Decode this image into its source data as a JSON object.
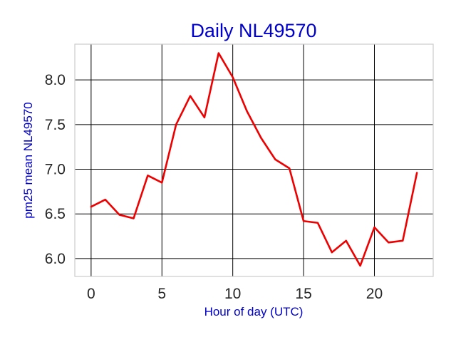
{
  "chart_data": {
    "type": "line",
    "title": "Daily NL49570",
    "xlabel": "Hour of day (UTC)",
    "ylabel": "pm25 mean NL49570",
    "xlim": [
      -1.15,
      24.15
    ],
    "ylim": [
      5.8,
      8.4
    ],
    "xticks": [
      0,
      5,
      10,
      15,
      20
    ],
    "xtick_labels": [
      "0",
      "5",
      "10",
      "15",
      "20"
    ],
    "yticks": [
      6.0,
      6.5,
      7.0,
      7.5,
      8.0
    ],
    "ytick_labels": [
      "6.0",
      "6.5",
      "7.0",
      "7.5",
      "8.0"
    ],
    "grid": true,
    "legend": "none",
    "colors": {
      "line": "#ee0000",
      "grid": "#000000",
      "frame": "#cccccc",
      "title": "#0000cc",
      "axis_labels": "#0000cc",
      "ticks": "#262626"
    },
    "series": [
      {
        "x": [
          0,
          1,
          2,
          3,
          4,
          5,
          6,
          7,
          8,
          9,
          10,
          11,
          12,
          13,
          14,
          15,
          16,
          17,
          18,
          19,
          20,
          21,
          22,
          23
        ],
        "values": [
          6.58,
          6.66,
          6.49,
          6.45,
          6.93,
          6.85,
          7.5,
          7.82,
          7.58,
          8.3,
          8.03,
          7.65,
          7.35,
          7.11,
          7.01,
          6.42,
          6.4,
          6.07,
          6.2,
          5.92,
          6.35,
          6.18,
          6.2,
          6.96
        ]
      }
    ]
  }
}
